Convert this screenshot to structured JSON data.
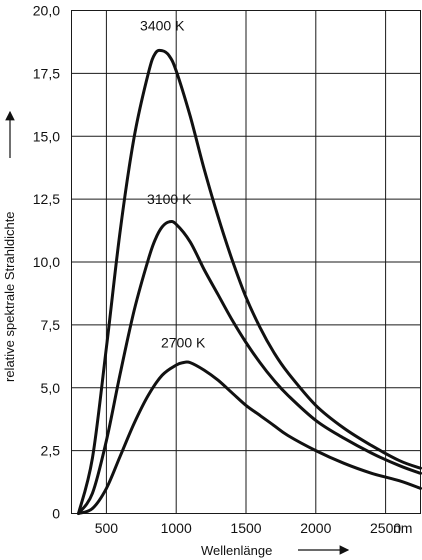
{
  "chart_data": {
    "type": "line",
    "xlabel": "Wellenlänge",
    "ylabel": "relative spektrale Strahldichte",
    "x_unit": "nm",
    "xlim": [
      250,
      2750
    ],
    "ylim": [
      0,
      20
    ],
    "x_ticks": [
      500,
      1000,
      1500,
      2000,
      2500
    ],
    "x_tick_labels": [
      "500",
      "1000",
      "1500",
      "2000",
      "2500"
    ],
    "y_ticks": [
      0,
      2.5,
      5,
      7.5,
      10,
      12.5,
      15,
      17.5,
      20
    ],
    "y_tick_labels": [
      "0",
      "2,5",
      "5,0",
      "7,5",
      "10,0",
      "12,5",
      "15,0",
      "17,5",
      "20,0"
    ],
    "grid": true,
    "series": [
      {
        "name": "3400 K",
        "x": [
          300,
          400,
          500,
          600,
          700,
          800,
          850,
          900,
          950,
          1000,
          1100,
          1200,
          1300,
          1400,
          1500,
          1600,
          1700,
          1800,
          2000,
          2200,
          2400,
          2600,
          2750
        ],
        "y": [
          0,
          2.2,
          6.6,
          11.3,
          15.0,
          17.5,
          18.3,
          18.4,
          18.2,
          17.6,
          15.8,
          13.7,
          11.8,
          10.1,
          8.6,
          7.4,
          6.4,
          5.6,
          4.3,
          3.4,
          2.7,
          2.1,
          1.8
        ]
      },
      {
        "name": "3100 K",
        "x": [
          300,
          400,
          500,
          600,
          700,
          800,
          850,
          900,
          950,
          1000,
          1100,
          1200,
          1300,
          1400,
          1500,
          1600,
          1700,
          1800,
          2000,
          2200,
          2400,
          2600,
          2750
        ],
        "y": [
          0,
          0.8,
          2.9,
          5.6,
          8.1,
          10.1,
          10.9,
          11.4,
          11.6,
          11.5,
          10.8,
          9.7,
          8.7,
          7.7,
          6.8,
          6.0,
          5.3,
          4.7,
          3.7,
          3.0,
          2.4,
          1.9,
          1.6
        ]
      },
      {
        "name": "2700 K",
        "x": [
          300,
          400,
          500,
          600,
          700,
          800,
          900,
          1000,
          1050,
          1100,
          1200,
          1300,
          1400,
          1500,
          1600,
          1700,
          1800,
          2000,
          2200,
          2400,
          2600,
          2750
        ],
        "y": [
          0,
          0.2,
          1.0,
          2.3,
          3.6,
          4.7,
          5.5,
          5.9,
          6.0,
          6.0,
          5.7,
          5.3,
          4.8,
          4.3,
          3.9,
          3.5,
          3.1,
          2.5,
          2.0,
          1.6,
          1.3,
          1.0
        ]
      }
    ],
    "curve_labels": [
      {
        "text": "3400 K",
        "x": 900,
        "y": 19.2
      },
      {
        "text": "3100 K",
        "x": 950,
        "y": 12.3
      },
      {
        "text": "2700 K",
        "x": 1050,
        "y": 6.6
      }
    ]
  }
}
